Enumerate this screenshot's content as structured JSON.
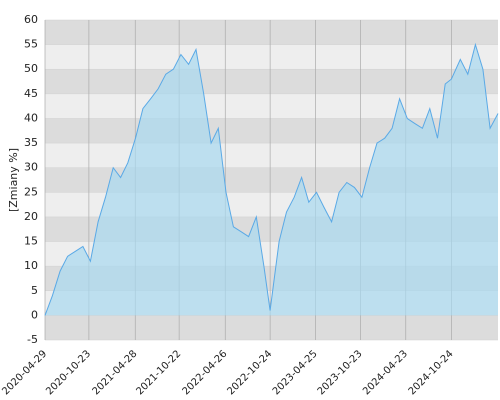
{
  "chart_data": {
    "type": "area",
    "y_label": "[Zmiany %]",
    "x": [
      "2020-04-29",
      "2020-05-29",
      "2020-06-29",
      "2020-07-29",
      "2020-08-29",
      "2020-09-29",
      "2020-10-29",
      "2020-11-29",
      "2020-12-29",
      "2021-01-29",
      "2021-02-28",
      "2021-03-29",
      "2021-04-29",
      "2021-05-29",
      "2021-06-29",
      "2021-07-29",
      "2021-08-29",
      "2021-09-29",
      "2021-10-29",
      "2021-11-29",
      "2021-12-29",
      "2022-01-29",
      "2022-02-28",
      "2022-03-29",
      "2022-04-29",
      "2022-05-29",
      "2022-06-29",
      "2022-07-29",
      "2022-08-29",
      "2022-09-29",
      "2022-10-24",
      "2022-11-29",
      "2022-12-29",
      "2023-01-29",
      "2023-02-28",
      "2023-03-29",
      "2023-04-29",
      "2023-05-29",
      "2023-06-29",
      "2023-07-29",
      "2023-08-29",
      "2023-09-29",
      "2023-10-29",
      "2023-11-29",
      "2023-12-29",
      "2024-01-29",
      "2024-02-28",
      "2024-03-29",
      "2024-04-29",
      "2024-05-29",
      "2024-06-29",
      "2024-07-29",
      "2024-08-29",
      "2024-09-29",
      "2024-10-24",
      "2024-11-29",
      "2024-12-29",
      "2025-01-29",
      "2025-02-28",
      "2025-03-29",
      "2025-04-30"
    ],
    "values": [
      0,
      4,
      9,
      12,
      13,
      14,
      11,
      19,
      24,
      30,
      28,
      31,
      36,
      42,
      44,
      46,
      49,
      50,
      53,
      51,
      54,
      45,
      35,
      38,
      25,
      18,
      17,
      16,
      20,
      10,
      1,
      15,
      21,
      24,
      28,
      23,
      25,
      22,
      19,
      25,
      27,
      26,
      24,
      30,
      35,
      36,
      38,
      44,
      40,
      39,
      38,
      42,
      36,
      47,
      48,
      52,
      49,
      55,
      50,
      38,
      41
    ],
    "color": "#5aa9e6",
    "fill_color": "#a8d8f0",
    "xlim": [
      "2020-04-29",
      "2025-04-30"
    ],
    "xticks": [
      "2020-04-29",
      "2020-10-23",
      "2021-04-28",
      "2021-10-22",
      "2022-04-26",
      "2022-10-24",
      "2023-04-25",
      "2023-10-23",
      "2024-04-23",
      "2024-10-24"
    ],
    "ylim": [
      -5,
      60
    ],
    "yticks": [
      -5,
      0,
      5,
      10,
      15,
      20,
      25,
      30,
      35,
      40,
      45,
      50,
      55,
      60
    ],
    "grid": true,
    "band_colors": [
      "#dcdcdc",
      "#eeeeee"
    ]
  }
}
